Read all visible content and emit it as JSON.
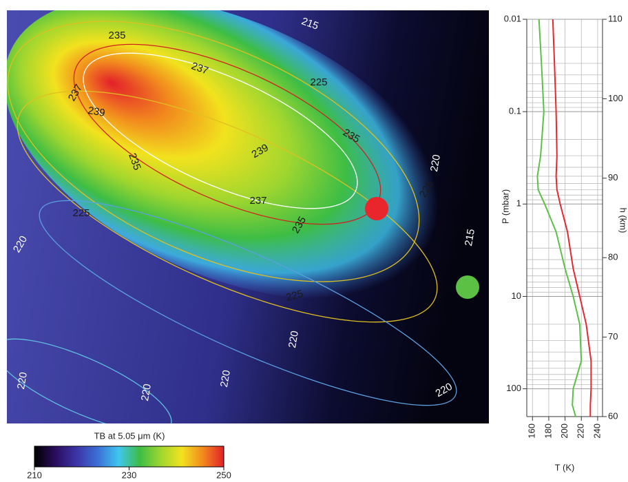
{
  "chart_data": [
    {
      "type": "heatmap",
      "colorbar_label": "TB at 5.05 μm (K)",
      "clim": [
        210,
        250
      ],
      "colorbar_ticks": [
        210,
        230,
        250
      ],
      "colormap": [
        "#000000",
        "#2b0d5e",
        "#3c34a6",
        "#3b6fd6",
        "#3fc6ef",
        "#3dbd45",
        "#9fd62f",
        "#f2e21e",
        "#f28a1e",
        "#e3202a"
      ],
      "contour_labels": [
        215,
        235,
        237,
        225,
        237,
        239,
        239,
        235,
        235,
        220,
        225,
        225,
        237,
        235,
        220,
        215,
        225,
        220,
        220,
        220,
        220,
        220
      ]
    },
    {
      "type": "line",
      "xlabel": "T (K)",
      "ylabel": "P (mbar)",
      "y2label": "h (km)",
      "xlim": [
        153,
        246
      ],
      "xticks": [
        160,
        180,
        200,
        220,
        240
      ],
      "ylim": [
        0.01,
        200
      ],
      "yscale": "log",
      "yticks": [
        0.01,
        0.1,
        1,
        10,
        100
      ],
      "yminor": [
        0.02,
        0.03,
        0.04,
        0.05,
        0.06,
        0.07,
        0.08,
        0.09,
        0.2,
        0.3,
        0.4,
        0.5,
        0.6,
        0.7,
        0.8,
        0.9,
        2,
        3,
        4,
        5,
        6,
        7,
        8,
        9,
        20,
        30,
        40,
        50,
        60,
        70,
        80,
        90,
        200
      ],
      "y2lim": [
        60,
        110
      ],
      "y2ticks": [
        60,
        70,
        80,
        90,
        100,
        110
      ],
      "grid": true,
      "y": [
        0.01,
        0.03,
        0.1,
        0.3,
        0.5,
        0.7,
        1,
        2,
        5,
        10,
        20,
        50,
        100,
        150,
        200
      ],
      "series": [
        {
          "color": "#e8262c",
          "values": [
            185,
            187,
            189,
            190,
            189,
            190,
            194,
            203,
            210,
            218,
            226,
            232,
            232,
            231,
            231
          ]
        },
        {
          "color": "#5cc045",
          "values": [
            168,
            171,
            174,
            170,
            166,
            167,
            175,
            189,
            200,
            210,
            218,
            220,
            210,
            209,
            213
          ]
        }
      ]
    }
  ]
}
